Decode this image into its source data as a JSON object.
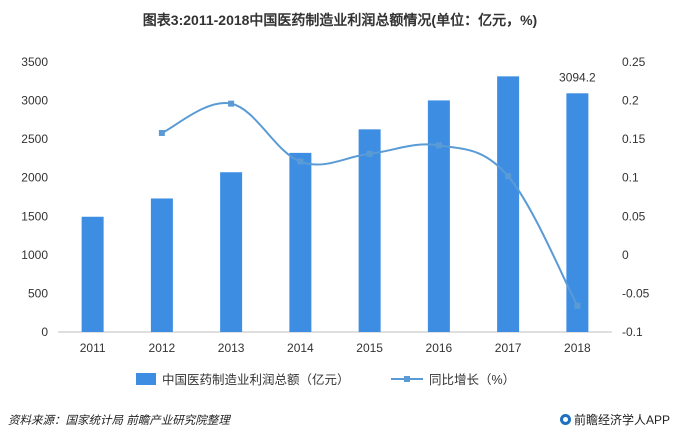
{
  "chart_data": {
    "type": "bar",
    "title": "图表3:2011-2018中国医药制造业利润总额情况(单位：亿元，%)",
    "categories": [
      "2011",
      "2012",
      "2013",
      "2014",
      "2015",
      "2016",
      "2017",
      "2018"
    ],
    "series": [
      {
        "name": "中国医药制造业利润总额（亿元）",
        "type": "bar",
        "axis": "left",
        "color": "#3d8ee3",
        "values": [
          1494,
          1731,
          2071,
          2322,
          2627,
          3002,
          3314,
          3094.2
        ]
      },
      {
        "name": "同比增长（%）",
        "type": "line",
        "axis": "right",
        "color": "#5b9bd5",
        "values": [
          null,
          0.158,
          0.196,
          0.121,
          0.131,
          0.142,
          0.102,
          -0.066
        ]
      }
    ],
    "annotations": [
      {
        "category": "2018",
        "text": "3094.2"
      }
    ],
    "yleft": {
      "min": 0,
      "max": 3500,
      "ticks": [
        "0",
        "500",
        "1000",
        "1500",
        "2000",
        "2500",
        "3000",
        "3500"
      ]
    },
    "yright": {
      "min": -0.1,
      "max": 0.25,
      "ticks": [
        "-0.1",
        "-0.05",
        "0",
        "0.05",
        "0.1",
        "0.15",
        "0.2",
        "0.25"
      ]
    },
    "grid": false,
    "legend_position": "bottom"
  },
  "footer": {
    "source": "资料来源：国家统计局 前瞻产业研究院整理",
    "brand": "前瞻经济学人APP"
  }
}
